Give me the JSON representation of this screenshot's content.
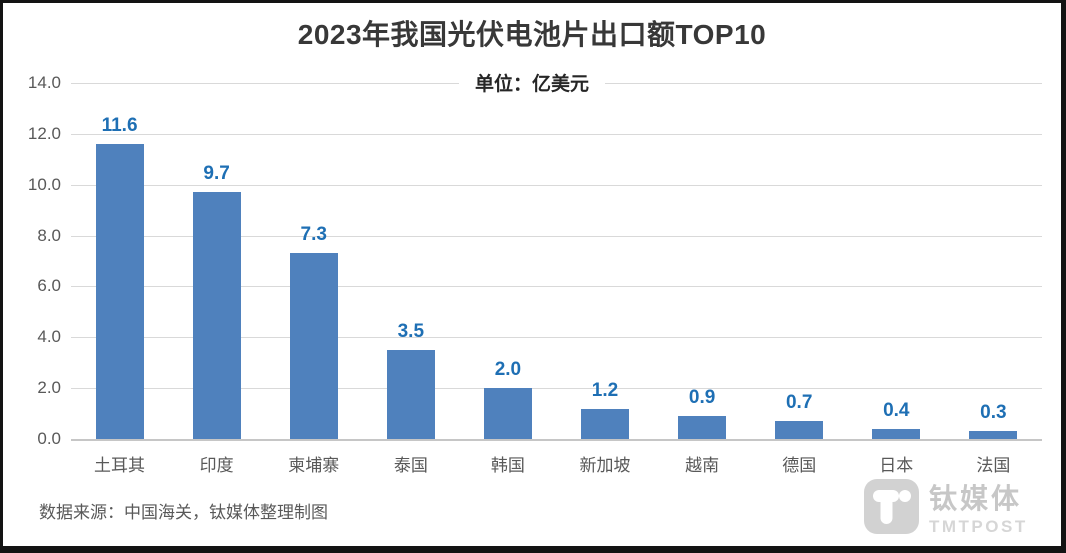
{
  "chart_data": {
    "type": "bar",
    "title": "2023年我国光伏电池片出口额TOP10",
    "unit_label": "单位：亿美元",
    "categories": [
      "土耳其",
      "印度",
      "柬埔寨",
      "泰国",
      "韩国",
      "新加坡",
      "越南",
      "德国",
      "日本",
      "法国"
    ],
    "values": [
      11.6,
      9.7,
      7.3,
      3.5,
      2.0,
      1.2,
      0.9,
      0.7,
      0.4,
      0.3
    ],
    "xlabel": "",
    "ylabel": "",
    "ylim": [
      0,
      14
    ],
    "yticks": [
      0,
      2,
      4,
      6,
      8,
      10,
      12,
      14
    ],
    "grid": true,
    "legend": "none",
    "colors": {
      "bar": "#4f81bd",
      "value_label": "#1e6fb4",
      "axis_text": "#595959",
      "gridline": "#d9d9d9",
      "title_text": "#383838"
    }
  },
  "footer": {
    "source": "数据来源：中国海关，钛媒体整理制图"
  },
  "branding": {
    "name": "钛媒体",
    "subname": "TMTPOST",
    "icon": "tmtpost-logo-icon"
  }
}
